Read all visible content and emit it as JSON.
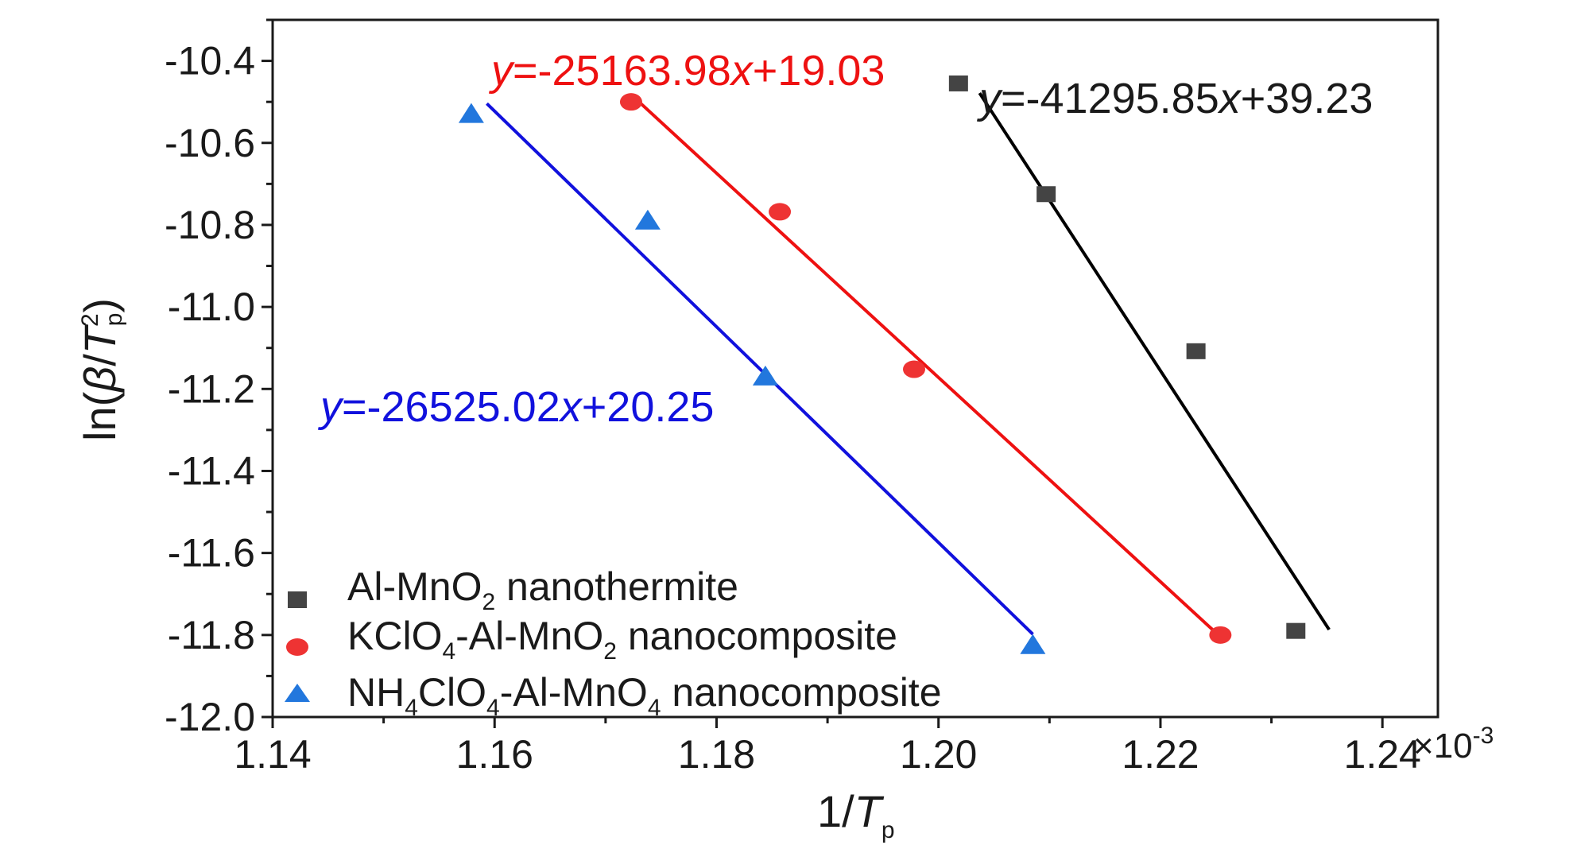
{
  "chart_data": {
    "type": "scatter",
    "xlabel": {
      "main": "1/",
      "italic": "T",
      "sub": "p"
    },
    "ylabel": {
      "pre": "ln(",
      "beta": "β",
      "slash": "/",
      "italic": "T",
      "sup": "2",
      "sub": "p",
      "post": ")"
    },
    "x_multiplier": {
      "symbol": "×10",
      "exp": "-3"
    },
    "xlim": [
      1.14,
      1.245
    ],
    "ylim": [
      -12.0,
      -10.3
    ],
    "x_ticks": [
      1.14,
      1.16,
      1.18,
      1.2,
      1.22,
      1.24
    ],
    "x_tick_labels": [
      "1.14",
      "1.16",
      "1.18",
      "1.20",
      "1.22",
      "1.24"
    ],
    "y_ticks": [
      -10.4,
      -10.6,
      -10.8,
      -11.0,
      -11.2,
      -11.4,
      -11.6,
      -11.8,
      -12.0
    ],
    "y_tick_labels": [
      "-10.4",
      "-10.6",
      "-10.8",
      "-11.0",
      "-11.2",
      "-11.4",
      "-11.6",
      "-11.8",
      "-12.0"
    ],
    "grid": false,
    "legend_position": "bottom-left",
    "series": [
      {
        "name": "Al-MnO2 nanothermite",
        "legend": {
          "pre": "Al-MnO",
          "sub": "2",
          "post": " nanothermite"
        },
        "marker": "square",
        "color": "#444444",
        "line_color": "#000000",
        "points": [
          [
            1.2018,
            -10.455
          ],
          [
            1.2097,
            -10.725
          ],
          [
            1.2232,
            -11.108
          ],
          [
            1.2322,
            -11.79
          ]
        ],
        "fit_x": [
          1.2037,
          1.2352
        ],
        "equation": {
          "y": "y",
          "mid": "=-41295.85",
          "x": "x",
          "post": "+39.23"
        }
      },
      {
        "name": "KClO4-Al-MnO2 nanocomposite",
        "legend": {
          "pre": "KClO",
          "sub": "4",
          "mid": "-Al-MnO",
          "sub2": "2",
          "post": " nanocomposite"
        },
        "marker": "circle",
        "color": "#ee3333",
        "line_color": "#ee1111",
        "points": [
          [
            1.1723,
            -10.5
          ],
          [
            1.1857,
            -10.768
          ],
          [
            1.1978,
            -11.152
          ],
          [
            1.2254,
            -11.8
          ]
        ],
        "fit_x": [
          1.1729,
          1.2254
        ],
        "equation": {
          "y": "y",
          "mid": "=-25163.98",
          "x": "x",
          "post": "+19.03"
        }
      },
      {
        "name": "NH4ClO4-Al-MnO4 nanocomposite",
        "legend": {
          "pre": "NH",
          "sub": "4",
          "mid": "ClO",
          "sub2": "4",
          "mid2": "-Al-MnO",
          "sub3": "4",
          "post": " nanocomposite"
        },
        "marker": "triangle",
        "color": "#2277dd",
        "line_color": "#1111dd",
        "points": [
          [
            1.1579,
            -10.53
          ],
          [
            1.1738,
            -10.79
          ],
          [
            1.1844,
            -11.17
          ],
          [
            1.2085,
            -11.825
          ]
        ],
        "fit_x": [
          1.1593,
          1.2085
        ],
        "equation": {
          "y": "y",
          "mid": "=-26525.02",
          "x": "x",
          "post": "+20.25"
        }
      }
    ]
  }
}
